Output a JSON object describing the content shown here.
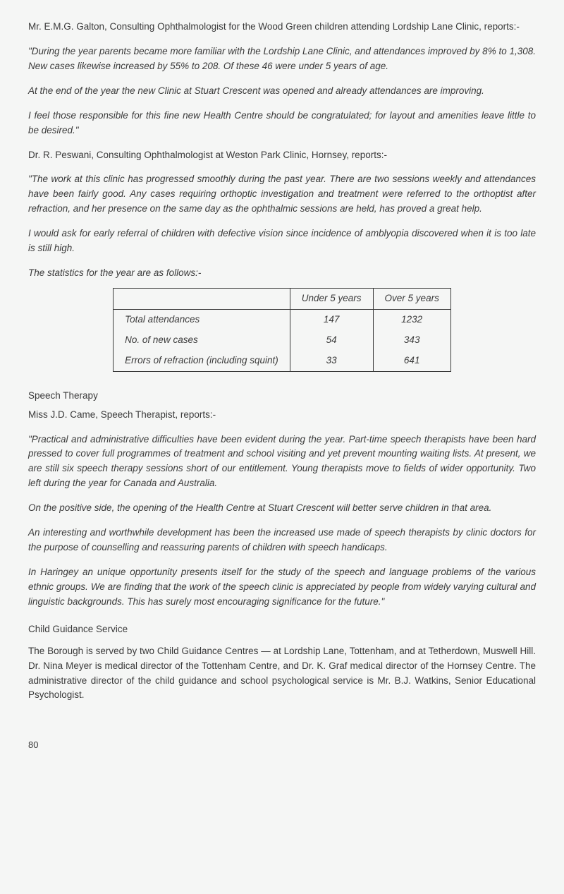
{
  "intro1": "Mr. E.M.G. Galton, Consulting Ophthalmologist for the Wood Green children attending Lordship Lane Clinic, reports:-",
  "quote1_p1": "\"During the year parents became more familiar with the Lordship Lane Clinic, and attendances improved by 8% to 1,308. New cases likewise increased by 55% to 208. Of these 46 were under 5 years of age.",
  "quote1_p2": "At the end of the year the new Clinic at Stuart Crescent was opened and already attendances are improving.",
  "quote1_p3": "I feel those responsible for this fine new Health Centre should be congratulated; for layout and amenities leave little to be desired.\"",
  "intro2": "Dr. R. Peswani, Consulting Ophthalmologist at Weston Park Clinic, Hornsey, reports:-",
  "quote2_p1": "\"The work at this clinic has progressed smoothly during the past year. There are two sessions weekly and attendances have been fairly good. Any cases requiring orthoptic investigation and treatment were referred to the orthoptist after refraction, and her presence on the same day as the ophthalmic sessions are held, has proved a great help.",
  "quote2_p2": "I would ask for early referral of children with defective vision since incidence of amblyopia discovered when it is too late is still high.",
  "stats_intro": "The statistics for the year are as follows:-",
  "table": {
    "blank_header": "",
    "col1": "Under 5 years",
    "col2": "Over 5 years",
    "rows": [
      {
        "label": "Total attendances",
        "v1": "147",
        "v2": "1232"
      },
      {
        "label": "No. of new cases",
        "v1": "54",
        "v2": "343"
      },
      {
        "label": "Errors of refraction (including squint)",
        "v1": "33",
        "v2": "641"
      }
    ]
  },
  "speech_heading": "Speech Therapy",
  "speech_intro": "Miss J.D. Came, Speech Therapist, reports:-",
  "speech_p1": "\"Practical and administrative difficulties have been evident during the year. Part-time speech therapists have been hard pressed to cover full programmes of treatment and school visiting and yet prevent mounting waiting lists. At present, we are still six speech therapy sessions short of our entitlement. Young therapists move to fields of wider opportunity. Two left during the year for Canada and Australia.",
  "speech_p2": "On the positive side, the opening of the Health Centre at Stuart Crescent will better serve children in that area.",
  "speech_p3": "An interesting and worthwhile development has been the increased use made of speech therapists by clinic doctors for the purpose of counselling and reassuring parents of children with speech handicaps.",
  "speech_p4": "In Haringey an unique opportunity presents itself for the study of the speech and language problems of the various ethnic groups. We are finding that the work of the speech clinic is appreciated by people from widely varying cultural and linguistic backgrounds. This has surely most encouraging significance for the future.\"",
  "cgs_heading": "Child Guidance Service",
  "cgs_p1": "The Borough is served by two Child Guidance Centres — at Lordship Lane, Tottenham, and at Tetherdown, Muswell Hill. Dr. Nina Meyer is medical director of the Tottenham Centre, and Dr. K. Graf medical director of the Hornsey Centre. The administrative director of the child guidance and school psychological service is Mr. B.J. Watkins, Senior Educational Psychologist.",
  "page_number": "80"
}
